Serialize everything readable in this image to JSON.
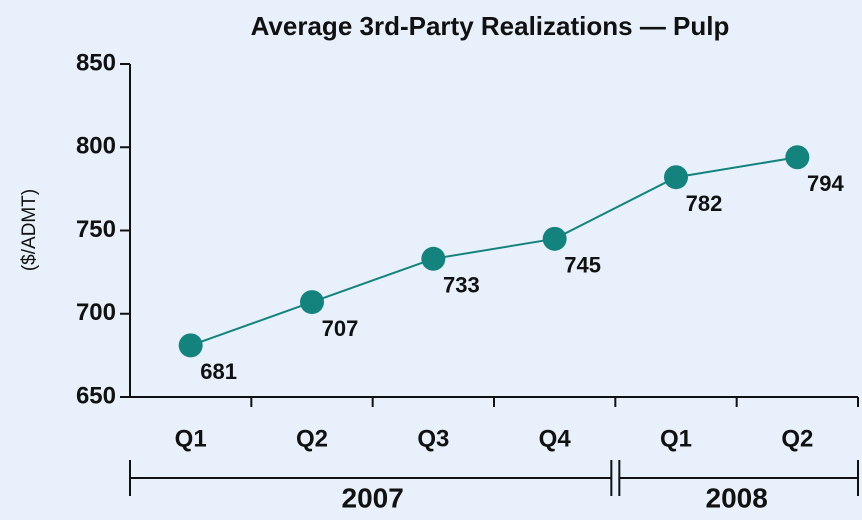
{
  "chart_data": {
    "type": "line",
    "title": "Average 3rd-Party Realizations — Pulp",
    "y_label": "($/ADMT)",
    "groups": [
      {
        "label": "2007",
        "categories": [
          "Q1",
          "Q2",
          "Q3",
          "Q4"
        ]
      },
      {
        "label": "2008",
        "categories": [
          "Q1",
          "Q2"
        ]
      }
    ],
    "series": [
      {
        "name": "Pulp",
        "color": "#15837d",
        "values": [
          681,
          707,
          733,
          745,
          782,
          794
        ]
      }
    ],
    "ylim": [
      650,
      850
    ],
    "yticks": [
      650,
      700,
      750,
      800,
      850
    ],
    "grid": false
  }
}
